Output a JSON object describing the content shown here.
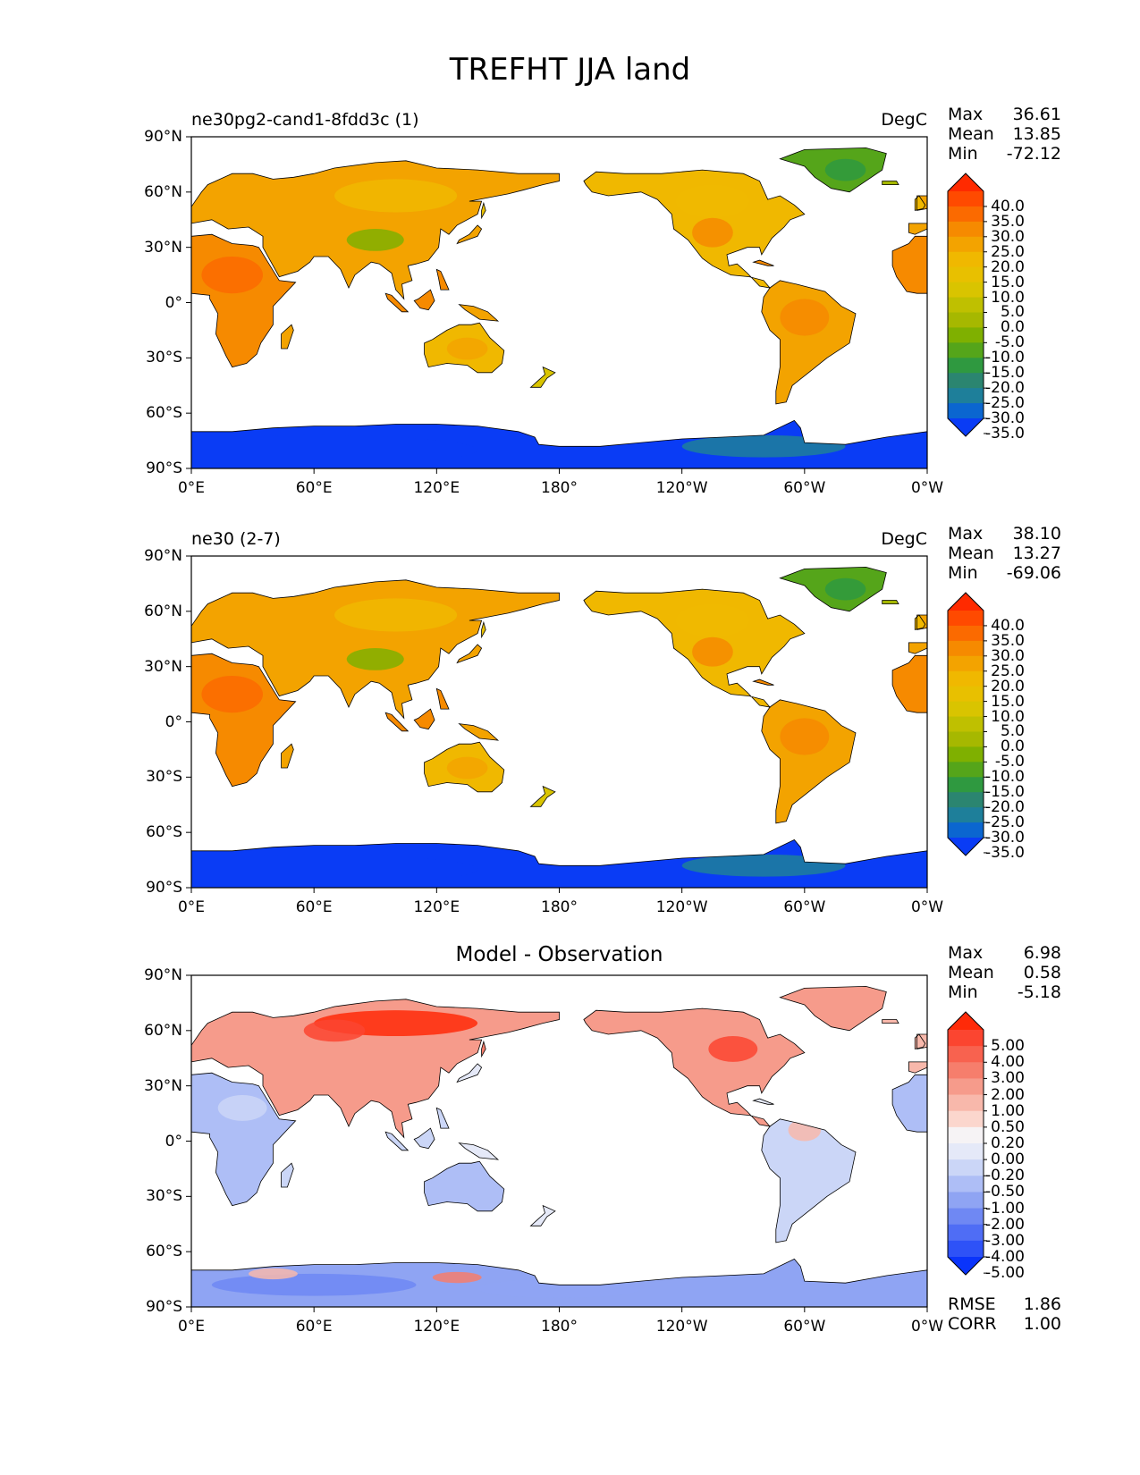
{
  "figure": {
    "title": "TREFHT JJA land",
    "lat_ticks": [
      "90°N",
      "60°N",
      "30°N",
      "0°",
      "30°S",
      "60°S",
      "90°S"
    ],
    "lon_ticks": [
      "0°E",
      "60°E",
      "120°E",
      "180°",
      "120°W",
      "60°W",
      "0°W"
    ]
  },
  "panels": [
    {
      "id": "test",
      "left_title": "ne30pg2-cand1-8fdd3c (1)",
      "center_title": "",
      "right_title": "DegC",
      "stats": [
        {
          "label": "Max",
          "value": "36.61"
        },
        {
          "label": "Mean",
          "value": "13.85"
        },
        {
          "label": "Min",
          "value": "-72.12"
        }
      ],
      "colorbar": {
        "levels": [
          "40.0",
          "35.0",
          "30.0",
          "25.0",
          "20.0",
          "15.0",
          "10.0",
          "5.0",
          "0.0",
          "-5.0",
          "-10.0",
          "-15.0",
          "-20.0",
          "-25.0",
          "-30.0",
          "-35.0"
        ],
        "colors": [
          "#ff2a00",
          "#ff4a00",
          "#fb6a00",
          "#f68a00",
          "#f3a300",
          "#f0b800",
          "#e8c000",
          "#d9c400",
          "#bfc000",
          "#a6b800",
          "#7fb000",
          "#55a51a",
          "#2f9940",
          "#2b8570",
          "#1e7f9a",
          "#0b66d0",
          "#0a3cf5"
        ]
      },
      "extra_stats": []
    },
    {
      "id": "reference",
      "left_title": "ne30 (2-7)",
      "center_title": "",
      "right_title": "DegC",
      "stats": [
        {
          "label": "Max",
          "value": "38.10"
        },
        {
          "label": "Mean",
          "value": "13.27"
        },
        {
          "label": "Min",
          "value": "-69.06"
        }
      ],
      "colorbar": {
        "levels": [
          "40.0",
          "35.0",
          "30.0",
          "25.0",
          "20.0",
          "15.0",
          "10.0",
          "5.0",
          "0.0",
          "-5.0",
          "-10.0",
          "-15.0",
          "-20.0",
          "-25.0",
          "-30.0",
          "-35.0"
        ],
        "colors": [
          "#ff2a00",
          "#ff4a00",
          "#fb6a00",
          "#f68a00",
          "#f3a300",
          "#f0b800",
          "#e8c000",
          "#d9c400",
          "#bfc000",
          "#a6b800",
          "#7fb000",
          "#55a51a",
          "#2f9940",
          "#2b8570",
          "#1e7f9a",
          "#0b66d0",
          "#0a3cf5"
        ]
      },
      "extra_stats": []
    },
    {
      "id": "difference",
      "left_title": "",
      "center_title": "Model - Observation",
      "right_title": "",
      "stats": [
        {
          "label": "Max",
          "value": "6.98"
        },
        {
          "label": "Mean",
          "value": "0.58"
        },
        {
          "label": "Min",
          "value": "-5.18"
        }
      ],
      "colorbar": {
        "levels": [
          "5.00",
          "4.00",
          "3.00",
          "2.00",
          "1.00",
          "0.50",
          "0.20",
          "0.00",
          "-0.20",
          "-0.50",
          "-1.00",
          "-2.00",
          "-3.00",
          "-4.00",
          "-5.00"
        ],
        "colors": [
          "#ff2a08",
          "#fb4530",
          "#f8624f",
          "#f67e6c",
          "#f69b8b",
          "#f8b8ab",
          "#fbd6cd",
          "#f6f3f5",
          "#e5e9f8",
          "#cbd6f7",
          "#aebef6",
          "#8fa4f3",
          "#6f88f3",
          "#4f6df5",
          "#2e52f7",
          "#0a34fb"
        ]
      },
      "extra_stats": [
        {
          "label": "RMSE",
          "value": "1.86"
        },
        {
          "label": "CORR",
          "value": "1.00"
        }
      ]
    }
  ],
  "colors": {
    "ocean": "#ffffff",
    "antarctica_main": "#0a3cf5",
    "coastline": "#000000",
    "diff_positive": "#f8624f",
    "diff_negative": "#8fa4f3"
  }
}
